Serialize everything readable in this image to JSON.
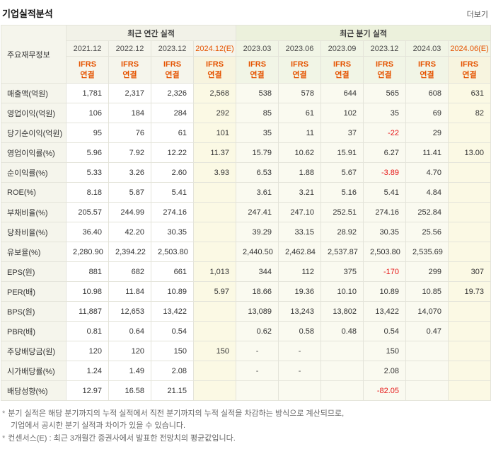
{
  "page": {
    "title": "기업실적분석",
    "more_label": "더보기",
    "bullet": "*"
  },
  "colors": {
    "accent_orange": "#e55300",
    "negative_red": "#e61717",
    "annual_group_bg": "#f2f2e8",
    "quarter_group_bg": "#ecf1dc",
    "estimate_cell_bg": "#fbf9e4"
  },
  "table": {
    "corner_label": "주요재무정보",
    "groups": [
      {
        "label": "최근 연간 실적",
        "span": 4
      },
      {
        "label": "최근 분기 실적",
        "span": 6
      }
    ],
    "ifrs": {
      "line1": "IFRS",
      "line2": "연결"
    },
    "columns": [
      {
        "label": "2021.12",
        "section": "annual",
        "estimate": false
      },
      {
        "label": "2022.12",
        "section": "annual",
        "estimate": false
      },
      {
        "label": "2023.12",
        "section": "annual",
        "estimate": false
      },
      {
        "label": "2024.12(E)",
        "section": "annual",
        "estimate": true
      },
      {
        "label": "2023.03",
        "section": "quarter",
        "estimate": false
      },
      {
        "label": "2023.06",
        "section": "quarter",
        "estimate": false
      },
      {
        "label": "2023.09",
        "section": "quarter",
        "estimate": false
      },
      {
        "label": "2023.12",
        "section": "quarter",
        "estimate": false
      },
      {
        "label": "2024.03",
        "section": "quarter",
        "estimate": false
      },
      {
        "label": "2024.06(E)",
        "section": "quarter",
        "estimate": true
      }
    ],
    "rows": [
      {
        "label": "매출액(억원)",
        "values": [
          "1,781",
          "2,317",
          "2,326",
          "2,568",
          "538",
          "578",
          "644",
          "565",
          "608",
          "631"
        ]
      },
      {
        "label": "영업이익(억원)",
        "values": [
          "106",
          "184",
          "284",
          "292",
          "85",
          "61",
          "102",
          "35",
          "69",
          "82"
        ]
      },
      {
        "label": "당기순이익(억원)",
        "values": [
          "95",
          "76",
          "61",
          "101",
          "35",
          "11",
          "37",
          "-22",
          "29",
          ""
        ]
      },
      {
        "label": "영업이익률(%)",
        "values": [
          "5.96",
          "7.92",
          "12.22",
          "11.37",
          "15.79",
          "10.62",
          "15.91",
          "6.27",
          "11.41",
          "13.00"
        ]
      },
      {
        "label": "순이익률(%)",
        "values": [
          "5.33",
          "3.26",
          "2.60",
          "3.93",
          "6.53",
          "1.88",
          "5.67",
          "-3.89",
          "4.70",
          ""
        ]
      },
      {
        "label": "ROE(%)",
        "values": [
          "8.18",
          "5.87",
          "5.41",
          "",
          "3.61",
          "3.21",
          "5.16",
          "5.41",
          "4.84",
          ""
        ]
      },
      {
        "label": "부채비율(%)",
        "values": [
          "205.57",
          "244.99",
          "274.16",
          "",
          "247.41",
          "247.10",
          "252.51",
          "274.16",
          "252.84",
          ""
        ]
      },
      {
        "label": "당좌비율(%)",
        "values": [
          "36.40",
          "42.20",
          "30.35",
          "",
          "39.29",
          "33.15",
          "28.92",
          "30.35",
          "25.56",
          ""
        ]
      },
      {
        "label": "유보율(%)",
        "values": [
          "2,280.90",
          "2,394.22",
          "2,503.80",
          "",
          "2,440.50",
          "2,462.84",
          "2,537.87",
          "2,503.80",
          "2,535.69",
          ""
        ]
      },
      {
        "label": "EPS(원)",
        "values": [
          "881",
          "682",
          "661",
          "1,013",
          "344",
          "112",
          "375",
          "-170",
          "299",
          "307"
        ]
      },
      {
        "label": "PER(배)",
        "values": [
          "10.98",
          "11.84",
          "10.89",
          "5.97",
          "18.66",
          "19.36",
          "10.10",
          "10.89",
          "10.85",
          "19.73"
        ]
      },
      {
        "label": "BPS(원)",
        "values": [
          "11,887",
          "12,653",
          "13,422",
          "",
          "13,089",
          "13,243",
          "13,802",
          "13,422",
          "14,070",
          ""
        ]
      },
      {
        "label": "PBR(배)",
        "values": [
          "0.81",
          "0.64",
          "0.54",
          "",
          "0.62",
          "0.58",
          "0.48",
          "0.54",
          "0.47",
          ""
        ]
      },
      {
        "label": "주당배당금(원)",
        "values": [
          "120",
          "120",
          "150",
          "150",
          "-",
          "-",
          "",
          "150",
          "",
          ""
        ]
      },
      {
        "label": "시가배당률(%)",
        "values": [
          "1.24",
          "1.49",
          "2.08",
          "",
          "-",
          "-",
          "",
          "2.08",
          "",
          ""
        ]
      },
      {
        "label": "배당성향(%)",
        "values": [
          "12.97",
          "16.58",
          "21.15",
          "",
          "",
          "",
          "",
          "-82.05",
          "",
          ""
        ]
      }
    ]
  },
  "notes": [
    {
      "lines": [
        "분기 실적은 해당 분기까지의 누적 실적에서 직전 분기까지의 누적 실적을 차감하는 방식으로 계산되므로,",
        "기업에서 공시한 분기 실적과 차이가 있을 수 있습니다."
      ]
    },
    {
      "lines": [
        "컨센서스(E) : 최근 3개월간 증권사에서 발표한 전망치의 평균값입니다."
      ]
    }
  ]
}
